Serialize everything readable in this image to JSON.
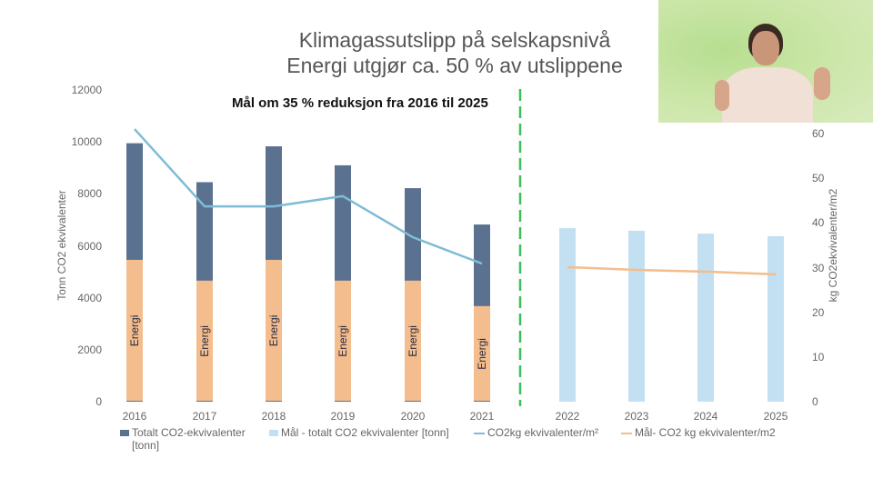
{
  "title": {
    "line1": "Klimagassutslipp på selskapsnivå",
    "line2": "Energi utgjør ca. 50 % av utslippene"
  },
  "annotation": "Mål om 35 % reduksjon fra 2016 til 2025",
  "bar_inner_label": "Energi",
  "colors": {
    "total": "#5a7190",
    "energi": "#f4bd8d",
    "target_total": "#c3e0f2",
    "co2kg_line": "#7fbcd6",
    "target_line": "#f4bd8d",
    "divider": "#3cbf5a"
  },
  "chart_data": {
    "type": "bar",
    "title": "Klimagassutslipp på selskapsnivå — Energi utgjør ca. 50 % av utslippene",
    "annotation": "Mål om 35 % reduksjon fra 2016 til 2025",
    "categories": [
      "2016",
      "2017",
      "2018",
      "2019",
      "2020",
      "2021",
      "2022",
      "2023",
      "2024",
      "2025"
    ],
    "ylabel": "Tonn CO2 ekvivalenter",
    "ylim": [
      0,
      12000
    ],
    "yticks": [
      "0",
      "2000",
      "4000",
      "6000",
      "8000",
      "10000",
      "12000"
    ],
    "y2label": "kg CO2ekvivalenter/m2",
    "y2lim": [
      0,
      60
    ],
    "y2ticks": [
      "0",
      "10",
      "20",
      "30",
      "40",
      "50",
      "60"
    ],
    "grid": false,
    "legend_position": "bottom",
    "series": [
      {
        "name": "Totalt CO2-ekvivalenter [tonn]",
        "type": "bar",
        "axis": "left",
        "values": [
          9950,
          8450,
          9830,
          9100,
          8220,
          6820,
          null,
          null,
          null,
          null
        ]
      },
      {
        "name": "Energi",
        "type": "bar-overlay",
        "axis": "left",
        "values": [
          5460,
          4660,
          5460,
          4660,
          4660,
          3680,
          null,
          null,
          null,
          null
        ]
      },
      {
        "name": "Mål - totalt CO2 ekvivalenter [tonn]",
        "type": "bar",
        "axis": "left",
        "values": [
          null,
          null,
          null,
          null,
          null,
          null,
          6680,
          6580,
          6470,
          6370
        ]
      },
      {
        "name": "CO2kg ekvivalenter/m²",
        "type": "line",
        "axis": "right",
        "values": [
          61,
          43.7,
          43.7,
          46,
          36.8,
          30.9,
          null,
          null,
          null,
          null
        ]
      },
      {
        "name": "Mål- CO2 kg ekvivalenter/m2",
        "type": "line",
        "axis": "right",
        "values": [
          null,
          null,
          null,
          null,
          null,
          null,
          30.1,
          29.5,
          29.1,
          28.5
        ]
      }
    ],
    "divider_between": [
      "2021",
      "2022"
    ]
  },
  "legend": [
    {
      "label": "Totalt CO2-ekvivalenter",
      "label2": "[tonn]",
      "kind": "box",
      "color": "#5a7190"
    },
    {
      "label": "Mål - totalt CO2 ekvivalenter [tonn]",
      "kind": "box",
      "color": "#c3e0f2"
    },
    {
      "label": "CO2kg ekvivalenter/m²",
      "kind": "line",
      "color": "#7fbcd6"
    },
    {
      "label": "Mål- CO2 kg ekvivalenter/m2",
      "kind": "line",
      "color": "#f4bd8d"
    }
  ]
}
